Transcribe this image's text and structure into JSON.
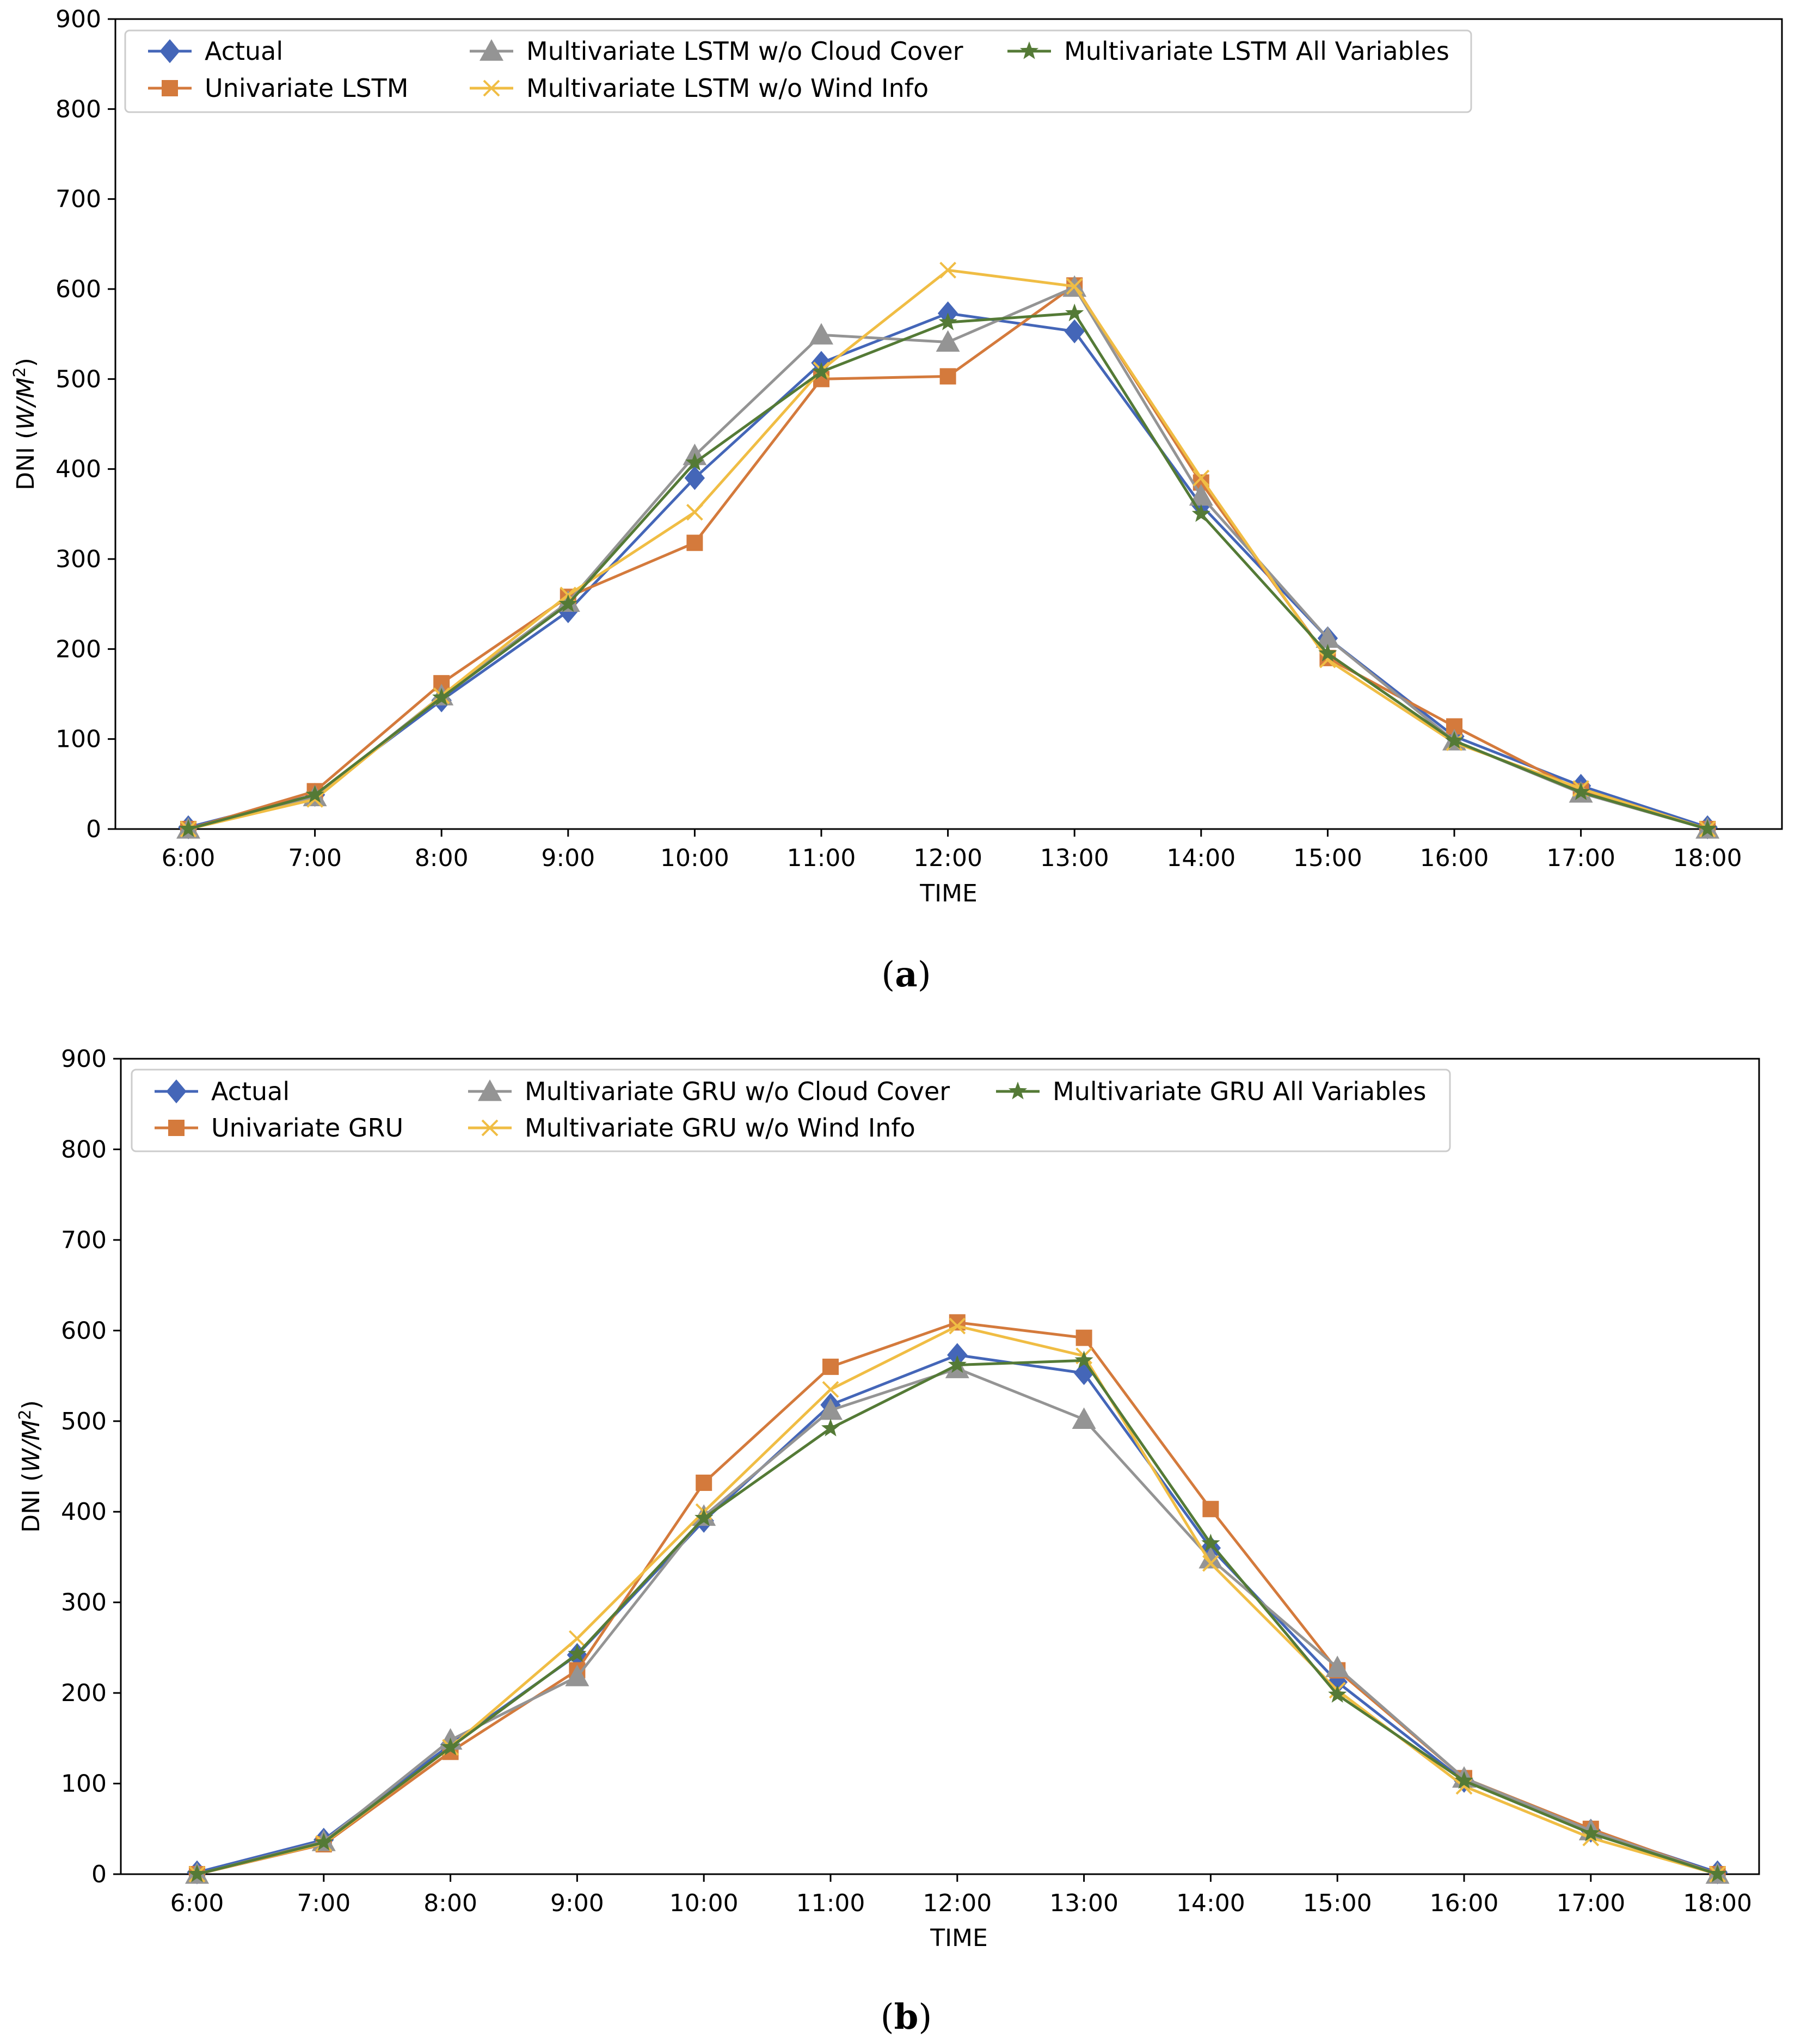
{
  "chart_data": [
    {
      "type": "line",
      "panel_label": "a",
      "xlabel": "TIME",
      "ylabel_prefix": "DNI (",
      "ylabel_unit": "W/M",
      "ylabel_exp": "2",
      "ylabel_suffix": ")",
      "ylim": [
        0,
        900
      ],
      "yticks": [
        "0",
        "100",
        "200",
        "300",
        "400",
        "500",
        "600",
        "700",
        "800",
        "900"
      ],
      "categories": [
        "6:00",
        "7:00",
        "8:00",
        "9:00",
        "10:00",
        "11:00",
        "12:00",
        "13:00",
        "14:00",
        "15:00",
        "16:00",
        "17:00",
        "18:00"
      ],
      "legend_position": "top-left",
      "series": [
        {
          "name": "Actual",
          "color": "#4466b8",
          "marker": "diamond",
          "values": [
            2,
            38,
            143,
            242,
            390,
            518,
            573,
            553,
            360,
            212,
            103,
            48,
            2
          ]
        },
        {
          "name": "Univariate LSTM",
          "color": "#d47a3c",
          "marker": "square",
          "values": [
            0,
            42,
            162,
            258,
            318,
            500,
            503,
            604,
            385,
            190,
            114,
            42,
            0
          ]
        },
        {
          "name": "Multivariate LSTM w/o Cloud Cover",
          "color": "#949494",
          "marker": "triangle",
          "values": [
            0,
            36,
            148,
            252,
            415,
            549,
            541,
            602,
            370,
            212,
            98,
            40,
            0
          ]
        },
        {
          "name": "Multivariate LSTM w/o Wind Info",
          "color": "#f0bd44",
          "marker": "x",
          "values": [
            0,
            33,
            148,
            260,
            352,
            510,
            621,
            603,
            390,
            188,
            96,
            45,
            0
          ]
        },
        {
          "name": "Multivariate LSTM All Variables",
          "color": "#547a36",
          "marker": "star",
          "values": [
            0,
            38,
            146,
            250,
            407,
            508,
            563,
            573,
            350,
            195,
            98,
            41,
            0
          ]
        }
      ]
    },
    {
      "type": "line",
      "panel_label": "b",
      "xlabel": "TIME",
      "ylabel_prefix": "DNI (",
      "ylabel_unit": "W/M",
      "ylabel_exp": "2",
      "ylabel_suffix": ")",
      "ylim": [
        0,
        900
      ],
      "yticks": [
        "0",
        "100",
        "200",
        "300",
        "400",
        "500",
        "600",
        "700",
        "800",
        "900"
      ],
      "categories": [
        "6:00",
        "7:00",
        "8:00",
        "9:00",
        "10:00",
        "11:00",
        "12:00",
        "13:00",
        "14:00",
        "15:00",
        "16:00",
        "17:00",
        "18:00"
      ],
      "legend_position": "top-left",
      "series": [
        {
          "name": "Actual",
          "color": "#4466b8",
          "marker": "diamond",
          "values": [
            2,
            38,
            143,
            242,
            390,
            518,
            573,
            553,
            360,
            212,
            103,
            48,
            2
          ]
        },
        {
          "name": "Univariate GRU",
          "color": "#d47a3c",
          "marker": "square",
          "values": [
            0,
            33,
            135,
            225,
            432,
            560,
            609,
            592,
            403,
            225,
            106,
            50,
            0
          ]
        },
        {
          "name": "Multivariate GRU w/o Cloud Cover",
          "color": "#949494",
          "marker": "triangle",
          "values": [
            0,
            36,
            148,
            218,
            395,
            512,
            558,
            502,
            348,
            228,
            106,
            48,
            0
          ]
        },
        {
          "name": "Multivariate GRU w/o Wind Info",
          "color": "#f0bd44",
          "marker": "x",
          "values": [
            0,
            34,
            140,
            260,
            400,
            535,
            605,
            572,
            343,
            203,
            97,
            40,
            0
          ]
        },
        {
          "name": "Multivariate GRU All Variables",
          "color": "#547a36",
          "marker": "star",
          "values": [
            0,
            35,
            140,
            243,
            393,
            492,
            562,
            567,
            365,
            198,
            103,
            45,
            0
          ]
        }
      ]
    }
  ]
}
